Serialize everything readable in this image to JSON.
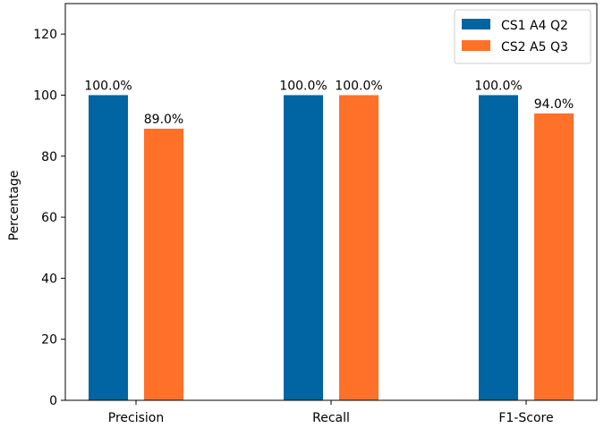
{
  "chart_data": {
    "type": "bar",
    "title": "",
    "xlabel": "",
    "ylabel": "Percentage",
    "categories": [
      "Precision",
      "Recall",
      "F1-Score"
    ],
    "series": [
      {
        "name": "CS1 A4 Q2",
        "values": [
          100.0,
          100.0,
          100.0
        ],
        "color": "#0065A2",
        "labels": [
          "100.0%",
          "100.0%",
          "100.0%"
        ]
      },
      {
        "name": "CS2 A5 Q3",
        "values": [
          89.0,
          100.0,
          94.0
        ],
        "color": "#FF7029",
        "labels": [
          "89.0%",
          "100.0%",
          "94.0%"
        ]
      }
    ],
    "ylim": [
      0,
      130
    ],
    "yticks": [
      0,
      20,
      40,
      60,
      80,
      100,
      120
    ],
    "grid": false,
    "legend": "top-right"
  }
}
